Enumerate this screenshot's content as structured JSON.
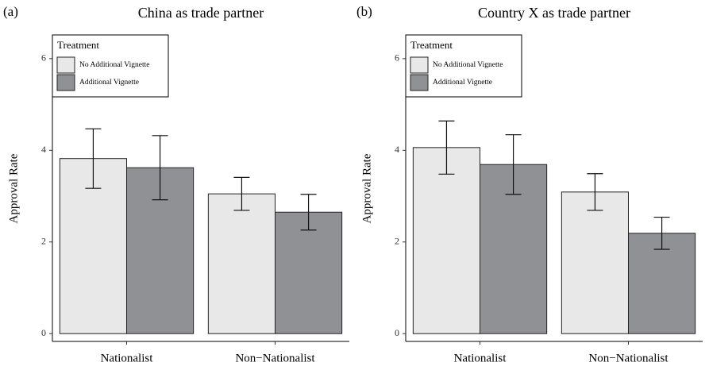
{
  "chart_data": [
    {
      "type": "bar",
      "panel_label": "(a)",
      "title": "China as trade partner",
      "y_label": "Approval Rate",
      "legend_title": "Treatment",
      "legend": "top-left",
      "categories": [
        "Nationalist",
        "Non−Nationalist"
      ],
      "series": [
        {
          "name": "No Additional Vignette",
          "color": "#e8e8e8",
          "values": [
            3.82,
            3.05
          ],
          "errors": [
            0.65,
            0.36
          ]
        },
        {
          "name": "Additional Vignette",
          "color": "#909194",
          "values": [
            3.62,
            2.65
          ],
          "errors": [
            0.7,
            0.39
          ]
        }
      ],
      "ylim": [
        -0.17,
        6.5
      ],
      "yticks": [
        0,
        2,
        4,
        6
      ]
    },
    {
      "type": "bar",
      "panel_label": "(b)",
      "title": "Country X as trade partner",
      "y_label": "Approval Rate",
      "legend_title": "Treatment",
      "legend": "top-left",
      "categories": [
        "Nationalist",
        "Non−Nationalist"
      ],
      "series": [
        {
          "name": "No Additional Vignette",
          "color": "#e8e8e8",
          "values": [
            4.06,
            3.09
          ],
          "errors": [
            0.58,
            0.4
          ]
        },
        {
          "name": "Additional Vignette",
          "color": "#909194",
          "values": [
            3.69,
            2.19
          ],
          "errors": [
            0.65,
            0.35
          ]
        }
      ],
      "ylim": [
        -0.17,
        6.5
      ],
      "yticks": [
        0,
        2,
        4,
        6
      ]
    }
  ]
}
